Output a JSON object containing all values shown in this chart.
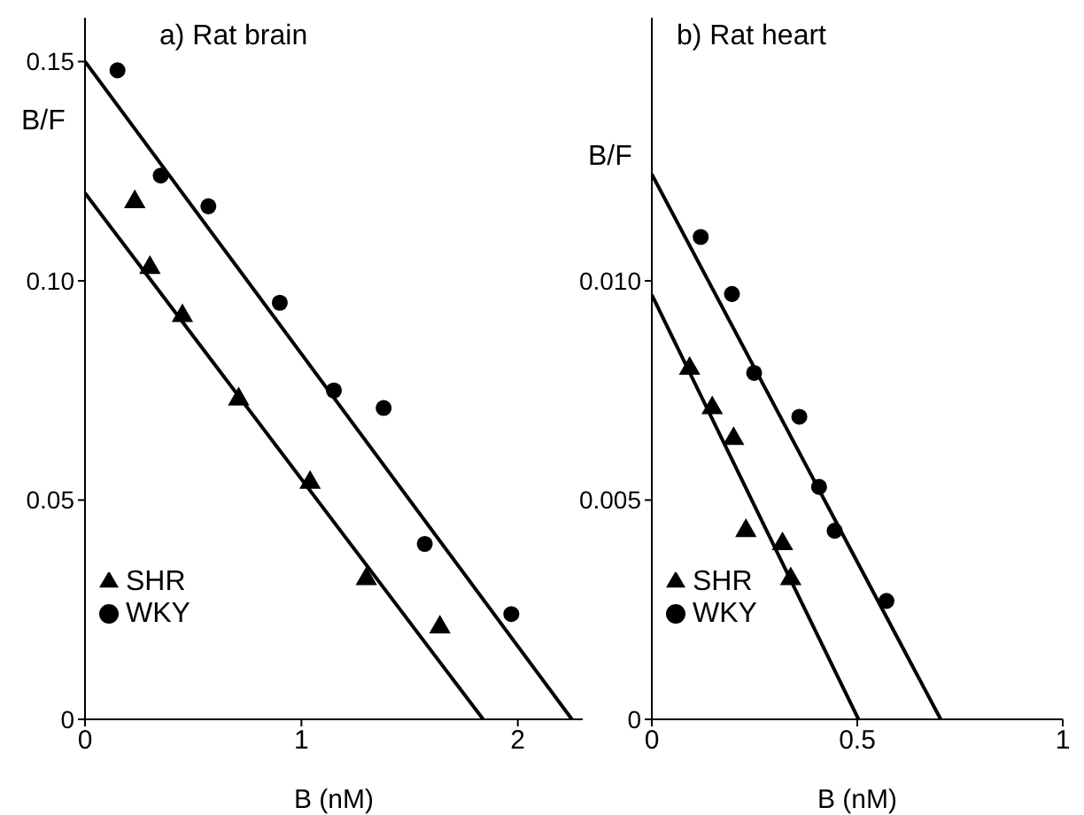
{
  "chart_data": [
    {
      "type": "scatter",
      "title": "a) Rat brain",
      "xlabel": "B (nM)",
      "ylabel": "B/F",
      "xlim": [
        0,
        2.3
      ],
      "xticks": [
        {
          "value": 0,
          "label": "0"
        },
        1,
        2
      ],
      "ylim": [
        0,
        0.16
      ],
      "yticks": [
        {
          "value": 0,
          "label": "0"
        },
        {
          "value": 0.05,
          "label": "0.05"
        },
        {
          "value": 0.1,
          "label": "0.10"
        },
        0.15
      ],
      "legend": "bottom left",
      "grid": false,
      "series": [
        {
          "name": "SHR",
          "color": "#000000",
          "marker": "triangle",
          "x": [
            0.23,
            0.3,
            0.45,
            0.71,
            1.04,
            1.3,
            1.64
          ],
          "values": [
            0.118,
            0.103,
            0.092,
            0.073,
            0.054,
            0.032,
            0.021
          ]
        },
        {
          "name": "WKY",
          "color": "#000000",
          "marker": "circle",
          "x": [
            0.15,
            0.35,
            0.57,
            0.9,
            1.15,
            1.38,
            1.57,
            1.97
          ],
          "values": [
            0.148,
            0.124,
            0.117,
            0.095,
            0.075,
            0.071,
            0.04,
            0.024
          ]
        },
        {
          "type": "line",
          "color": "#000000",
          "marker": "none",
          "x": [
            0,
            1.84
          ],
          "values": [
            0.12,
            0
          ]
        },
        {
          "type": "line",
          "color": "#000000",
          "marker": "none",
          "x": [
            0,
            2.25
          ],
          "values": [
            0.15,
            0
          ]
        }
      ]
    },
    {
      "type": "scatter",
      "title": "b) Rat heart",
      "xlabel": "B (nM)",
      "ylabel": "B/F",
      "xlim": [
        0,
        1
      ],
      "xticks": [
        {
          "value": 0,
          "label": "0"
        },
        0.5,
        1
      ],
      "ylim": [
        0,
        0.016
      ],
      "yticks": [
        {
          "value": 0,
          "label": "0"
        },
        {
          "value": 0.005,
          "label": "0.005"
        },
        {
          "value": 0.01,
          "label": "0.010"
        }
      ],
      "legend": "bottom left",
      "grid": false,
      "series": [
        {
          "name": "SHR",
          "color": "#000000",
          "marker": "triangle",
          "x": [
            0.092,
            0.147,
            0.199,
            0.229,
            0.318,
            0.338
          ],
          "values": [
            0.008,
            0.0071,
            0.0064,
            0.0043,
            0.004,
            0.0032
          ]
        },
        {
          "name": "WKY",
          "color": "#000000",
          "marker": "circle",
          "x": [
            0.119,
            0.195,
            0.249,
            0.359,
            0.407,
            0.445,
            0.571
          ],
          "values": [
            0.011,
            0.0097,
            0.0079,
            0.0069,
            0.0053,
            0.0043,
            0.0027
          ]
        },
        {
          "type": "line",
          "color": "#000000",
          "marker": "none",
          "x": [
            0,
            0.503
          ],
          "values": [
            0.00968,
            0
          ]
        },
        {
          "type": "line",
          "color": "#000000",
          "marker": "none",
          "x": [
            0,
            0.703
          ],
          "values": [
            0.01243,
            0
          ]
        }
      ]
    }
  ]
}
